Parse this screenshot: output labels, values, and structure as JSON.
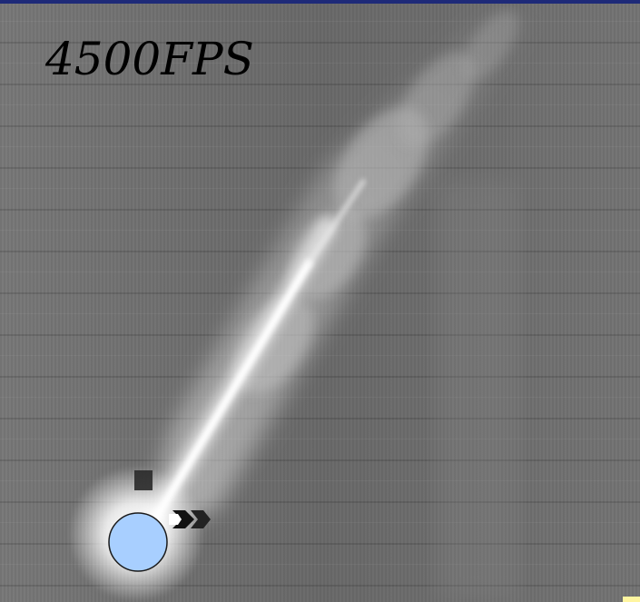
{
  "overlay": {
    "fps_text": "4500FPS"
  },
  "colors": {
    "background_gray": "#6f6f6f",
    "top_band": "#1e2a78",
    "jet_core": "#ffffff",
    "droplet_fill": "#a8cfff",
    "droplet_stroke": "#1a1a1a",
    "corner_mark": "#fff5a0"
  },
  "icons": {
    "droplet": "circle-droplet-icon",
    "nozzle": "nozzle-icon",
    "dark_marker": "square-marker-icon"
  }
}
